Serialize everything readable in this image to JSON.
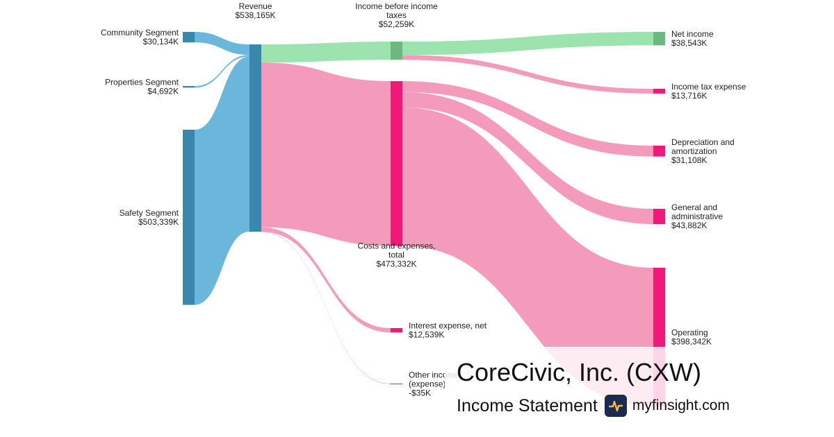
{
  "chart_data": {
    "type": "sankey",
    "title": "CoreCivic, Inc. (CXW)",
    "subtitle": "Income Statement",
    "nodes": [
      {
        "id": "community",
        "label": [
          "Community Segment"
        ],
        "value_label": "$30,134K",
        "value": 30134,
        "color": "#3a87ad"
      },
      {
        "id": "properties",
        "label": [
          "Properties Segment"
        ],
        "value_label": "$4,692K",
        "value": 4692,
        "color": "#3a87ad"
      },
      {
        "id": "safety",
        "label": [
          "Safety Segment"
        ],
        "value_label": "$503,339K",
        "value": 503339,
        "color": "#3a87ad"
      },
      {
        "id": "revenue",
        "label": [
          "Revenue"
        ],
        "value_label": "$538,165K",
        "value": 538165,
        "color": "#3a87ad"
      },
      {
        "id": "ibt",
        "label": [
          "Income before income",
          "taxes"
        ],
        "value_label": "$52,259K",
        "value": 52259,
        "color": "#6db87e"
      },
      {
        "id": "costs",
        "label": [
          "Costs and expenses,",
          "total"
        ],
        "value_label": "$473,332K",
        "value": 473332,
        "color": "#f0197a"
      },
      {
        "id": "interest",
        "label": [
          "Interest expense, net"
        ],
        "value_label": "$12,539K",
        "value": 12539,
        "color": "#f0197a"
      },
      {
        "id": "other",
        "label": [
          "Other income",
          "(expense)"
        ],
        "value_label": "-$35K",
        "value": -35,
        "color": "#f0197a"
      },
      {
        "id": "net",
        "label": [
          "Net income"
        ],
        "value_label": "$38,543K",
        "value": 38543,
        "color": "#6db87e"
      },
      {
        "id": "tax",
        "label": [
          "Income tax expense"
        ],
        "value_label": "$13,716K",
        "value": 13716,
        "color": "#f0197a"
      },
      {
        "id": "dep",
        "label": [
          "Depreciation and",
          "amortization"
        ],
        "value_label": "$31,108K",
        "value": 31108,
        "color": "#f0197a"
      },
      {
        "id": "ga",
        "label": [
          "General and",
          "administrative"
        ],
        "value_label": "$43,882K",
        "value": 43882,
        "color": "#f0197a"
      },
      {
        "id": "operating",
        "label": [
          "Operating"
        ],
        "value_label": "$398,342K",
        "value": 398342,
        "color": "#f0197a"
      }
    ],
    "links": [
      {
        "source": "community",
        "target": "revenue",
        "value": 30134,
        "color": "#6bb7dc"
      },
      {
        "source": "properties",
        "target": "revenue",
        "value": 4692,
        "color": "#6bb7dc"
      },
      {
        "source": "safety",
        "target": "revenue",
        "value": 503339,
        "color": "#6bb7dc"
      },
      {
        "source": "revenue",
        "target": "ibt",
        "value": 52259,
        "color": "#9de3b0"
      },
      {
        "source": "revenue",
        "target": "costs",
        "value": 473332,
        "color": "#f49bbb"
      },
      {
        "source": "revenue",
        "target": "interest",
        "value": 12539,
        "color": "#f49bbb"
      },
      {
        "source": "revenue",
        "target": "other",
        "value": 35,
        "color": "#f49bbb"
      },
      {
        "source": "ibt",
        "target": "net",
        "value": 38543,
        "color": "#9de3b0"
      },
      {
        "source": "ibt",
        "target": "tax",
        "value": 13716,
        "color": "#f49bbb"
      },
      {
        "source": "costs",
        "target": "dep",
        "value": 31108,
        "color": "#f49bbb"
      },
      {
        "source": "costs",
        "target": "ga",
        "value": 43882,
        "color": "#f49bbb"
      },
      {
        "source": "costs",
        "target": "operating",
        "value": 398342,
        "color": "#f49bbb"
      }
    ]
  },
  "branding": {
    "company": "CoreCivic, Inc. (CXW)",
    "statement": "Income Statement",
    "site": "myfinsight.com",
    "logo_icon": "pulse-line-icon",
    "logo_bg": "#1b2a4e",
    "logo_fg": "#f2b84b"
  }
}
